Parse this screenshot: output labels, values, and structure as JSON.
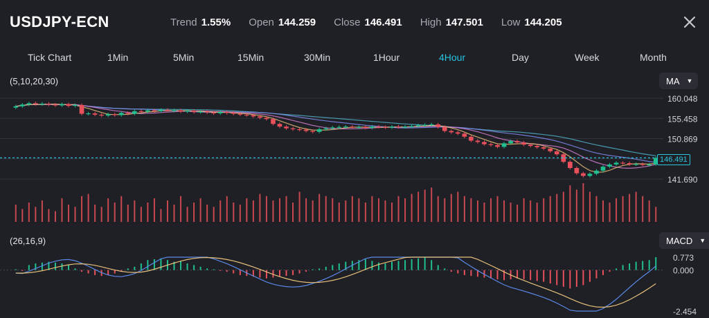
{
  "header": {
    "symbol": "USDJPY-ECN",
    "stats": [
      {
        "key": "Trend",
        "value": "1.55%"
      },
      {
        "key": "Open",
        "value": "144.259"
      },
      {
        "key": "Close",
        "value": "146.491"
      },
      {
        "key": "High",
        "value": "147.501"
      },
      {
        "key": "Low",
        "value": "144.205"
      }
    ],
    "close_icon": "close-icon"
  },
  "tabs": [
    {
      "label": "Tick Chart",
      "active": false
    },
    {
      "label": "1Min",
      "active": false
    },
    {
      "label": "5Min",
      "active": false
    },
    {
      "label": "15Min",
      "active": false
    },
    {
      "label": "30Min",
      "active": false
    },
    {
      "label": "1Hour",
      "active": false
    },
    {
      "label": "4Hour",
      "active": true
    },
    {
      "label": "Day",
      "active": false
    },
    {
      "label": "Week",
      "active": false
    },
    {
      "label": "Month",
      "active": false
    }
  ],
  "main_panel": {
    "params": "(5,10,20,30)",
    "indicator": "MA",
    "price_ticks": [
      "160.048",
      "155.458",
      "150.869",
      "141.690"
    ],
    "current_price": "146.491"
  },
  "macd_panel": {
    "params": "(26,16,9)",
    "indicator": "MACD",
    "ticks": [
      "0.773",
      "0.000",
      "-2.454"
    ]
  },
  "colors": {
    "up": "#1fbf8f",
    "down": "#e8505b",
    "accent": "#25c4e0",
    "volume": "#c9484f",
    "ma5": "#e8c07a",
    "ma10": "#d57fd0",
    "ma20": "#7f8cf0",
    "ma30": "#4fb0c6"
  },
  "chart_data": {
    "type": "candlestick",
    "symbol": "USDJPY-ECN",
    "timeframe": "4Hour",
    "ylim": [
      141.69,
      160.048
    ],
    "close": [
      158.2,
      158.6,
      158.9,
      158.7,
      158.8,
      158.6,
      158.4,
      158.7,
      158.3,
      158.5,
      156.5,
      156.6,
      156.3,
      156.1,
      156.4,
      156.2,
      156.7,
      156.5,
      157.1,
      157.0,
      157.3,
      157.1,
      157.4,
      157.2,
      157.3,
      157.0,
      157.2,
      156.9,
      157.0,
      156.8,
      156.6,
      156.9,
      156.7,
      156.5,
      156.3,
      156.2,
      155.9,
      155.6,
      155.3,
      154.2,
      153.6,
      153.2,
      153.0,
      152.9,
      152.6,
      152.4,
      153.0,
      153.2,
      153.4,
      153.5,
      153.6,
      153.4,
      153.5,
      153.3,
      153.6,
      153.5,
      153.4,
      153.6,
      153.5,
      153.6,
      153.7,
      153.9,
      154.0,
      154.1,
      153.5,
      152.6,
      152.3,
      152.0,
      151.3,
      150.4,
      150.1,
      149.6,
      149.4,
      149.0,
      149.8,
      150.3,
      150.0,
      149.5,
      149.2,
      148.9,
      148.6,
      148.0,
      147.3,
      145.6,
      144.2,
      143.0,
      142.4,
      142.9,
      143.6,
      144.5,
      145.0,
      145.4,
      145.3,
      145.0,
      145.1,
      144.9,
      145.0,
      146.49
    ],
    "volume": [
      40,
      30,
      45,
      35,
      50,
      30,
      25,
      55,
      40,
      35,
      60,
      65,
      40,
      35,
      55,
      45,
      60,
      40,
      50,
      35,
      45,
      55,
      30,
      50,
      40,
      60,
      35,
      45,
      55,
      40,
      35,
      50,
      60,
      45,
      40,
      55,
      50,
      65,
      60,
      50,
      55,
      60,
      45,
      70,
      55,
      50,
      65,
      60,
      55,
      45,
      50,
      60,
      55,
      45,
      60,
      55,
      50,
      45,
      60,
      55,
      65,
      70,
      75,
      80,
      60,
      55,
      65,
      70,
      60,
      55,
      50,
      45,
      55,
      60,
      50,
      45,
      40,
      55,
      50,
      45,
      55,
      60,
      65,
      70,
      85,
      75,
      90,
      70,
      60,
      50,
      45,
      55,
      60,
      65,
      70,
      60,
      50,
      35
    ],
    "macd_hist": [
      0.05,
      -0.05,
      0.3,
      0.4,
      0.45,
      0.5,
      0.45,
      0.4,
      0.3,
      0.1,
      -0.1,
      -0.2,
      -0.3,
      -0.35,
      -0.3,
      -0.2,
      -0.1,
      0.1,
      0.2,
      0.4,
      0.6,
      0.65,
      0.7,
      0.6,
      0.5,
      0.55,
      0.4,
      0.3,
      0.2,
      0.1,
      0.05,
      -0.05,
      -0.1,
      -0.2,
      -0.3,
      -0.35,
      -0.4,
      -0.45,
      -0.5,
      -0.45,
      -0.4,
      -0.35,
      -0.3,
      -0.2,
      -0.1,
      0.05,
      0.1,
      0.2,
      0.3,
      0.4,
      0.5,
      0.55,
      0.6,
      0.65,
      0.55,
      0.45,
      0.4,
      0.5,
      0.55,
      0.6,
      0.65,
      0.7,
      0.75,
      0.6,
      0.3,
      0.1,
      -0.1,
      -0.2,
      -0.3,
      -0.35,
      -0.4,
      -0.45,
      -0.5,
      -0.55,
      -0.6,
      -0.55,
      -0.5,
      -0.55,
      -0.6,
      -0.65,
      -0.7,
      -0.8,
      -0.9,
      -1.0,
      -1.1,
      -1.0,
      -0.9,
      -0.7,
      -0.5,
      -0.3,
      -0.1,
      0.1,
      0.3,
      0.4,
      0.5,
      0.55,
      0.6,
      0.773
    ],
    "macd_ylim": [
      -2.454,
      0.773
    ]
  }
}
